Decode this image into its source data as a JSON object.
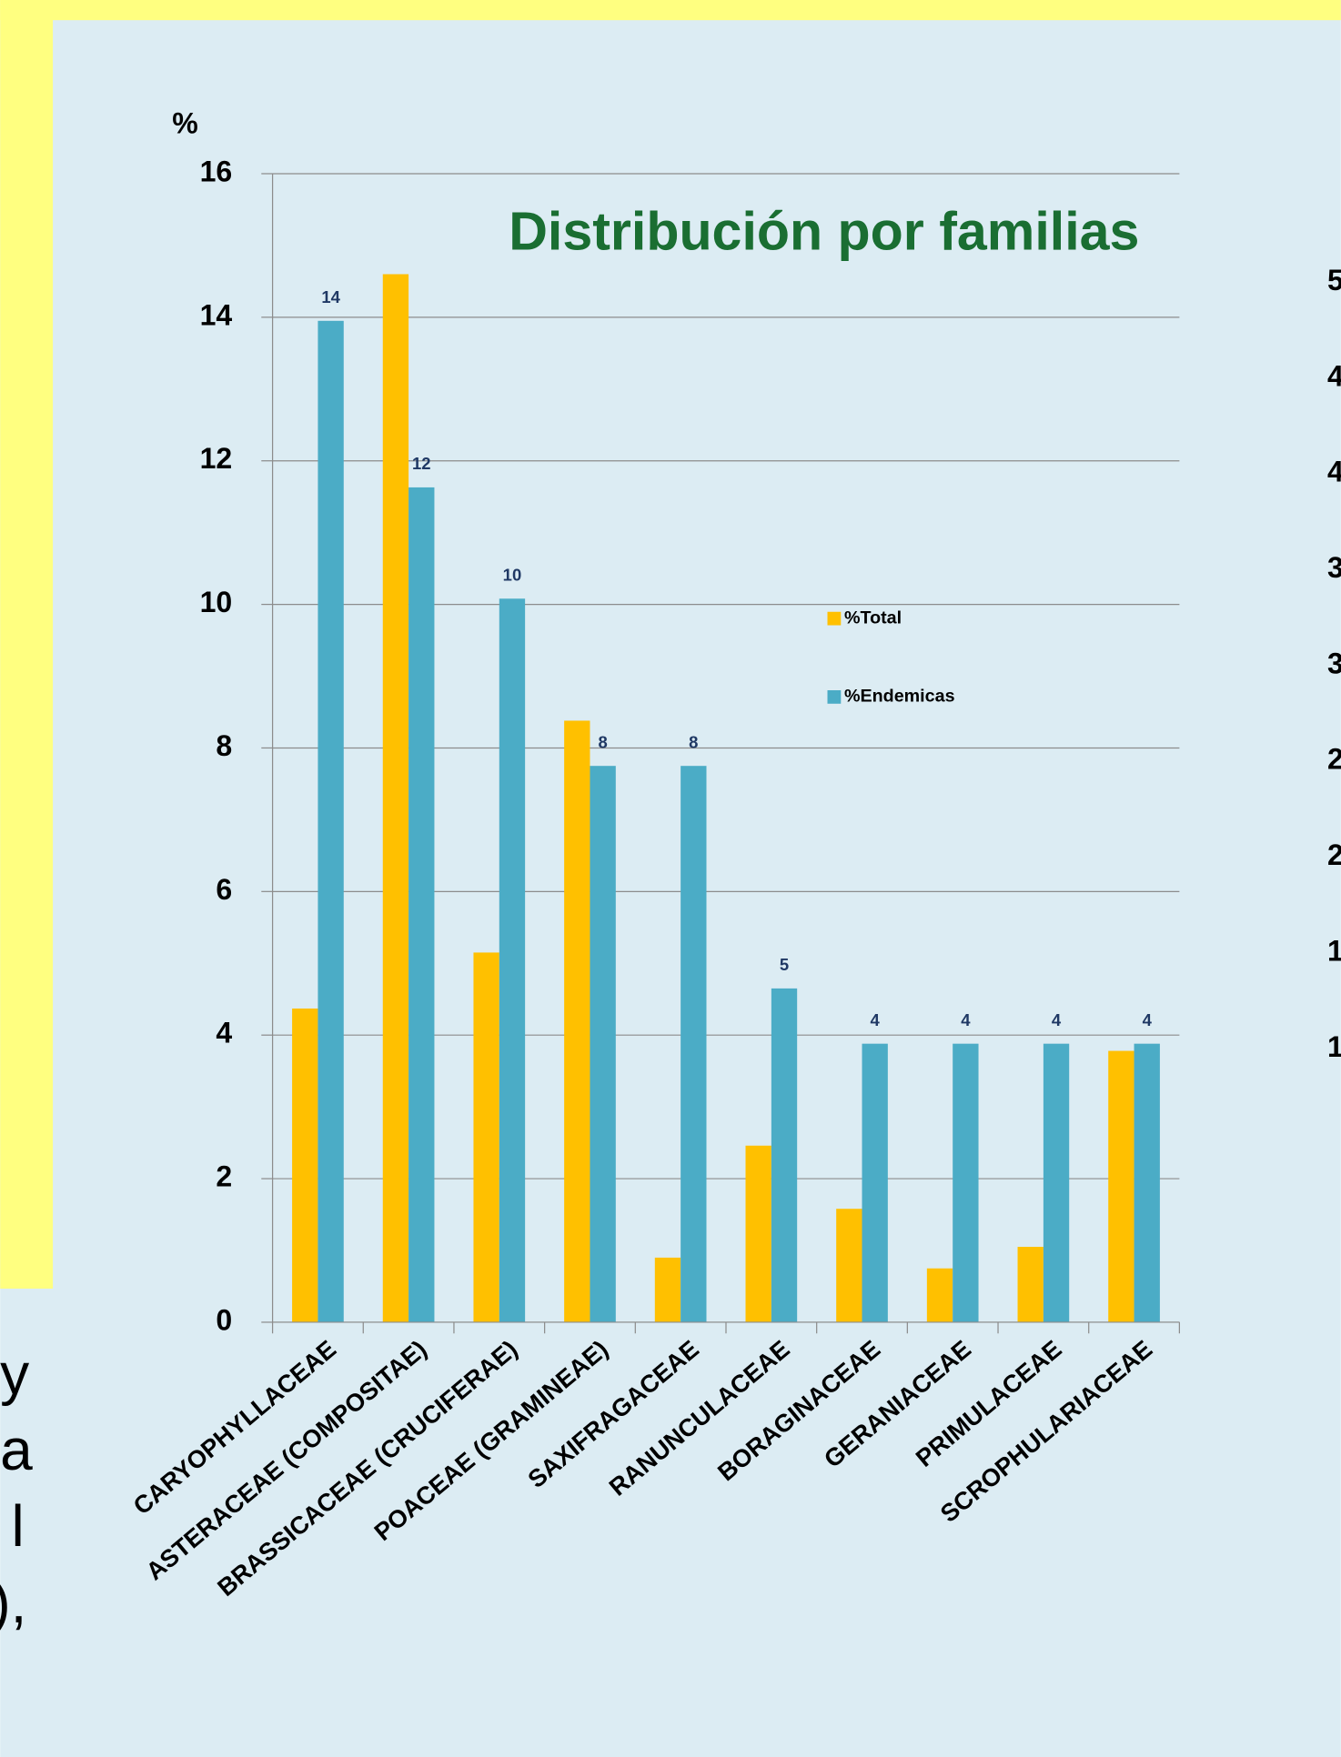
{
  "chart_data": {
    "type": "bar",
    "title": "Distribución por familias",
    "y_label": "%",
    "categories": [
      "CARYOPHYLLACEAE",
      "ASTERACEAE (COMPOSITAE)",
      "BRASSICACEAE (CRUCIFERAE)",
      "POACEAE (GRAMINEAE)",
      "SAXIFRAGACEAE",
      "RANUNCULACEAE",
      "BORAGINACEAE",
      "GERANIACEAE",
      "PRIMULACEAE",
      "SCROPHULARIACEAE"
    ],
    "series": [
      {
        "name": "%Total",
        "color": "#FFC000",
        "values": [
          4.37,
          14.6,
          5.15,
          8.38,
          0.9,
          2.46,
          1.58,
          0.75,
          1.05,
          3.78
        ]
      },
      {
        "name": "%Endemicas",
        "color": "#4BACC6",
        "values": [
          13.95,
          11.63,
          10.08,
          7.75,
          7.75,
          4.65,
          3.88,
          3.88,
          3.88,
          3.88
        ],
        "value_labels": [
          "14",
          "12",
          "10",
          "8",
          "8",
          "5",
          "4",
          "4",
          "4",
          "4"
        ]
      }
    ],
    "ylim": [
      0,
      16
    ],
    "yticks": [
      0,
      2,
      4,
      6,
      8,
      10,
      12,
      14,
      16
    ],
    "grid": true
  },
  "left_fragments": [
    "y",
    "a",
    "l",
    "),"
  ],
  "right_fragments": [
    "5",
    "4",
    "4",
    "3",
    "3",
    "2",
    "2",
    "1",
    "1"
  ]
}
